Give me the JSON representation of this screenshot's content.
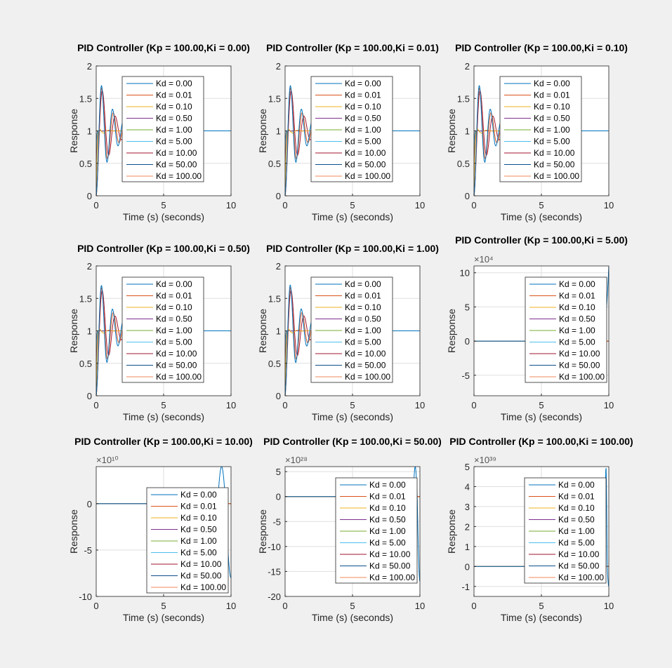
{
  "figure": {
    "background": "#f0f0f0",
    "axes_background": "#ffffff"
  },
  "legend_entries": [
    "Kd = 0.00",
    "Kd = 0.01",
    "Kd = 0.10",
    "Kd = 0.50",
    "Kd = 1.00",
    "Kd = 5.00",
    "Kd = 10.00",
    "Kd = 50.00",
    "Kd = 100.00"
  ],
  "series_colors": [
    "#0072bd",
    "#d95319",
    "#edb120",
    "#7e2f8e",
    "#77ac30",
    "#4dbeee",
    "#a2142f",
    "#0b4f8a",
    "#f08a5a"
  ],
  "chart_data": [
    {
      "type": "line",
      "title": "PID Controller (Kp = 100.00,Ki = 0.00)",
      "xlabel": "Time (s) (seconds)",
      "ylabel": "Response",
      "xlim": [
        0,
        10
      ],
      "ylim": [
        0,
        2
      ],
      "xticks": [
        0,
        5,
        10
      ],
      "yticks": [
        0,
        0.5,
        1,
        1.5,
        2
      ],
      "xtick_labels": [
        "0",
        "5",
        "10"
      ],
      "ytick_labels": [
        "0",
        "0.5",
        "1",
        "1.5",
        "2"
      ],
      "exponent_label": "",
      "grid": true,
      "legend_location": "north",
      "behavior": "stable",
      "peak": 1.7,
      "series_names": [
        "Kd = 0.00",
        "Kd = 0.01",
        "Kd = 0.10",
        "Kd = 0.50",
        "Kd = 1.00",
        "Kd = 5.00",
        "Kd = 10.00",
        "Kd = 50.00",
        "Kd = 100.00"
      ]
    },
    {
      "type": "line",
      "title": "PID Controller (Kp = 100.00,Ki = 0.01)",
      "xlabel": "Time (s) (seconds)",
      "ylabel": "Response",
      "xlim": [
        0,
        10
      ],
      "ylim": [
        0,
        2
      ],
      "xticks": [
        0,
        5,
        10
      ],
      "yticks": [
        0,
        0.5,
        1,
        1.5,
        2
      ],
      "xtick_labels": [
        "0",
        "5",
        "10"
      ],
      "ytick_labels": [
        "0",
        "0.5",
        "1",
        "1.5",
        "2"
      ],
      "exponent_label": "",
      "grid": true,
      "legend_location": "north",
      "behavior": "stable",
      "peak": 1.7,
      "series_names": [
        "Kd = 0.00",
        "Kd = 0.01",
        "Kd = 0.10",
        "Kd = 0.50",
        "Kd = 1.00",
        "Kd = 5.00",
        "Kd = 10.00",
        "Kd = 50.00",
        "Kd = 100.00"
      ]
    },
    {
      "type": "line",
      "title": "PID Controller (Kp = 100.00,Ki = 0.10)",
      "xlabel": "Time (s) (seconds)",
      "ylabel": "Response",
      "xlim": [
        0,
        10
      ],
      "ylim": [
        0,
        2
      ],
      "xticks": [
        0,
        5,
        10
      ],
      "yticks": [
        0,
        0.5,
        1,
        1.5,
        2
      ],
      "xtick_labels": [
        "0",
        "5",
        "10"
      ],
      "ytick_labels": [
        "0",
        "0.5",
        "1",
        "1.5",
        "2"
      ],
      "exponent_label": "",
      "grid": true,
      "legend_location": "north",
      "behavior": "stable",
      "peak": 1.7,
      "series_names": [
        "Kd = 0.00",
        "Kd = 0.01",
        "Kd = 0.10",
        "Kd = 0.50",
        "Kd = 1.00",
        "Kd = 5.00",
        "Kd = 10.00",
        "Kd = 50.00",
        "Kd = 100.00"
      ]
    },
    {
      "type": "line",
      "title": "PID Controller (Kp = 100.00,Ki = 0.50)",
      "xlabel": "Time (s) (seconds)",
      "ylabel": "Response",
      "xlim": [
        0,
        10
      ],
      "ylim": [
        0,
        2
      ],
      "xticks": [
        0,
        5,
        10
      ],
      "yticks": [
        0,
        0.5,
        1,
        1.5,
        2
      ],
      "xtick_labels": [
        "0",
        "5",
        "10"
      ],
      "ytick_labels": [
        "0",
        "0.5",
        "1",
        "1.5",
        "2"
      ],
      "exponent_label": "",
      "grid": true,
      "legend_location": "north",
      "behavior": "stable",
      "peak": 1.75,
      "series_names": [
        "Kd = 0.00",
        "Kd = 0.01",
        "Kd = 0.10",
        "Kd = 0.50",
        "Kd = 1.00",
        "Kd = 5.00",
        "Kd = 10.00",
        "Kd = 50.00",
        "Kd = 100.00"
      ]
    },
    {
      "type": "line",
      "title": "PID Controller (Kp = 100.00,Ki = 1.00)",
      "xlabel": "Time (s) (seconds)",
      "ylabel": "Response",
      "xlim": [
        0,
        10
      ],
      "ylim": [
        0,
        2
      ],
      "xticks": [
        0,
        5,
        10
      ],
      "yticks": [
        0,
        0.5,
        1,
        1.5,
        2
      ],
      "xtick_labels": [
        "0",
        "5",
        "10"
      ],
      "ytick_labels": [
        "0",
        "0.5",
        "1",
        "1.5",
        "2"
      ],
      "exponent_label": "",
      "grid": true,
      "legend_location": "north",
      "behavior": "stable",
      "peak": 1.83,
      "series_names": [
        "Kd = 0.00",
        "Kd = 0.01",
        "Kd = 0.10",
        "Kd = 0.50",
        "Kd = 1.00",
        "Kd = 5.00",
        "Kd = 10.00",
        "Kd = 50.00",
        "Kd = 100.00"
      ]
    },
    {
      "type": "line",
      "title": "PID Controller (Kp = 100.00,Ki = 5.00)",
      "xlabel": "Time (s) (seconds)",
      "ylabel": "Response",
      "xlim": [
        0,
        10
      ],
      "ylim": [
        -8,
        11
      ],
      "xticks": [
        0,
        5,
        10
      ],
      "yticks": [
        -5,
        0,
        5,
        10
      ],
      "xtick_labels": [
        "0",
        "5",
        "10"
      ],
      "ytick_labels": [
        "-5",
        "0",
        "5",
        "10"
      ],
      "exponent_label": "×10⁴",
      "grid": true,
      "legend_location": "east",
      "behavior": "unstable",
      "diverge_start": 9.3,
      "final_value": 11,
      "min_value": -7.5,
      "series_names": [
        "Kd = 0.00",
        "Kd = 0.01",
        "Kd = 0.10",
        "Kd = 0.50",
        "Kd = 1.00",
        "Kd = 5.00",
        "Kd = 10.00",
        "Kd = 50.00",
        "Kd = 100.00"
      ]
    },
    {
      "type": "line",
      "title": "PID Controller (Kp = 100.00,Ki = 10.00)",
      "xlabel": "Time (s) (seconds)",
      "ylabel": "Response",
      "xlim": [
        0,
        10
      ],
      "ylim": [
        -10,
        4
      ],
      "xticks": [
        0,
        5,
        10
      ],
      "yticks": [
        -10,
        -5,
        0
      ],
      "xtick_labels": [
        "0",
        "5",
        "10"
      ],
      "ytick_labels": [
        "-10",
        "-5",
        "0"
      ],
      "exponent_label": "×10¹⁰",
      "grid": true,
      "legend_location": "southeast",
      "behavior": "unstable",
      "diverge_start": 9.0,
      "final_value": -8,
      "min_value": -8,
      "max_value": 4,
      "series_names": [
        "Kd = 0.00",
        "Kd = 0.01",
        "Kd = 0.10",
        "Kd = 0.50",
        "Kd = 1.00",
        "Kd = 5.00",
        "Kd = 10.00",
        "Kd = 50.00",
        "Kd = 100.00"
      ]
    },
    {
      "type": "line",
      "title": "PID Controller (Kp = 100.00,Ki = 50.00)",
      "xlabel": "Time (s) (seconds)",
      "ylabel": "Response",
      "xlim": [
        0,
        10
      ],
      "ylim": [
        -20,
        6
      ],
      "xticks": [
        0,
        5,
        10
      ],
      "yticks": [
        -20,
        -15,
        -10,
        -5,
        0,
        5
      ],
      "xtick_labels": [
        "0",
        "5",
        "10"
      ],
      "ytick_labels": [
        "-20",
        "-15",
        "-10",
        "-5",
        "0",
        "5"
      ],
      "exponent_label": "×10²⁸",
      "grid": true,
      "legend_location": "east",
      "behavior": "unstable",
      "diverge_start": 9.5,
      "final_value": -17,
      "min_value": -17,
      "max_value": 6,
      "series_names": [
        "Kd = 0.00",
        "Kd = 0.01",
        "Kd = 0.10",
        "Kd = 0.50",
        "Kd = 1.00",
        "Kd = 5.00",
        "Kd = 10.00",
        "Kd = 50.00",
        "Kd = 100.00"
      ]
    },
    {
      "type": "line",
      "title": "PID Controller (Kp = 100.00,Ki = 100.00)",
      "xlabel": "Time (s) (seconds)",
      "ylabel": "Response",
      "xlim": [
        0,
        10
      ],
      "ylim": [
        -1.5,
        5
      ],
      "xticks": [
        0,
        5,
        10
      ],
      "yticks": [
        -1,
        0,
        1,
        2,
        3,
        4,
        5
      ],
      "xtick_labels": [
        "0",
        "5",
        "10"
      ],
      "ytick_labels": [
        "-1",
        "0",
        "1",
        "2",
        "3",
        "4",
        "5"
      ],
      "exponent_label": "×10³⁹",
      "grid": true,
      "legend_location": "east",
      "behavior": "unstable",
      "diverge_start": 9.7,
      "final_value": -1,
      "min_value": -1,
      "max_value": 5,
      "series_names": [
        "Kd = 0.00",
        "Kd = 0.01",
        "Kd = 0.10",
        "Kd = 0.50",
        "Kd = 1.00",
        "Kd = 5.00",
        "Kd = 10.00",
        "Kd = 50.00",
        "Kd = 100.00"
      ]
    }
  ]
}
